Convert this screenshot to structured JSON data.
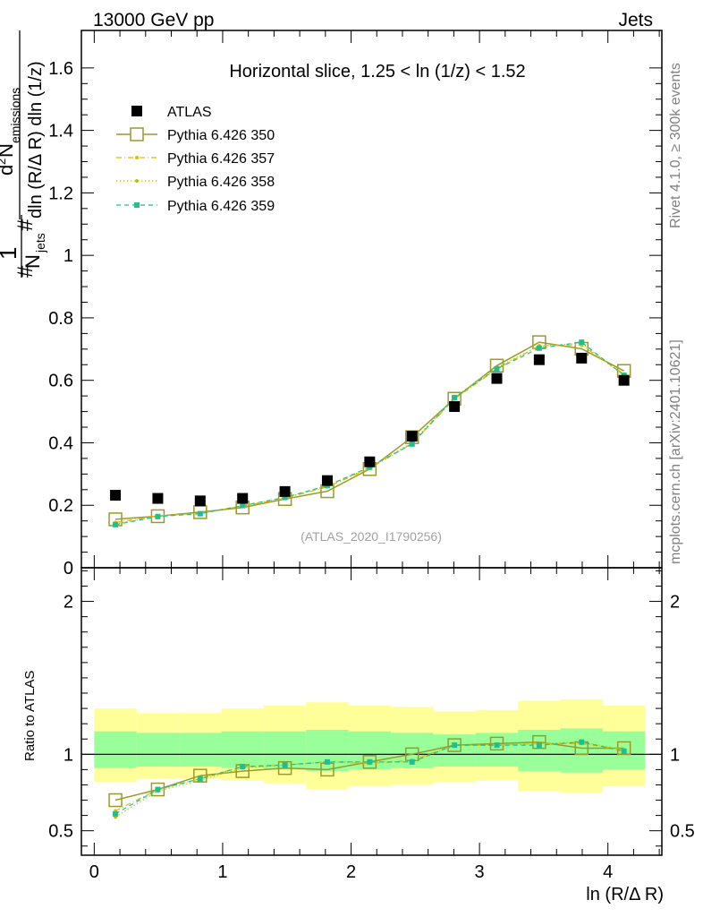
{
  "header": {
    "left": "13000 GeV pp",
    "right": "Jets"
  },
  "side_labels": {
    "rivet": "Rivet 4.1.0, ≥ 300k events",
    "mcplots": "mcplots.cern.ch [arXiv:2401.10621]"
  },
  "watermark": "(ATLAS_2020_I1790256)",
  "colors": {
    "atlas": "#000000",
    "p350": "#9a9a2a",
    "p357": "#e6b800",
    "p358": "#b8c800",
    "p359": "#1fbf8f",
    "band_outer": "#ffff99",
    "band_inner": "#99ff99"
  },
  "chart_data": [
    {
      "type": "scatter",
      "panel": "main",
      "title": "Horizontal slice, 1.25 < ln (1/z) < 1.52",
      "ylabel": "1/N_jets d²N_emissions / dln(R/ΔR) dln(1/z)",
      "ylabel_parts": {
        "one": "1",
        "njets": "N",
        "njets_sub": "jets",
        "num": "d",
        "num_sup": "2",
        "num_n": "N",
        "num_sub": "emissions",
        "den": "dln (R/Δ R) dln (1/z)",
        "hash": "#"
      },
      "xlim": [
        -0.1,
        4.42
      ],
      "ylim": [
        0,
        1.72
      ],
      "yticks": [
        0,
        0.2,
        0.4,
        0.6,
        0.8,
        1,
        1.2,
        1.4,
        1.6
      ],
      "ytick_labels": [
        "0",
        "0.2",
        "0.4",
        "0.6",
        "0.8",
        "1",
        "1.2",
        "1.4",
        "1.6"
      ],
      "x": [
        0.165,
        0.495,
        0.825,
        1.155,
        1.485,
        1.815,
        2.145,
        2.475,
        2.805,
        3.135,
        3.465,
        3.795,
        4.125
      ],
      "series": [
        {
          "name": "ATLAS",
          "style": "data",
          "values": [
            0.232,
            0.222,
            0.214,
            0.222,
            0.244,
            0.279,
            0.339,
            0.421,
            0.516,
            0.606,
            0.666,
            0.671,
            0.6
          ]
        },
        {
          "name": "Pythia 6.426 350",
          "style": "open-square",
          "values": [
            0.155,
            0.165,
            0.178,
            0.193,
            0.22,
            0.245,
            0.316,
            0.418,
            0.541,
            0.647,
            0.722,
            0.701,
            0.63
          ]
        },
        {
          "name": "Pythia 6.426 357",
          "style": "dashdot",
          "values": [
            0.145,
            0.166,
            0.174,
            0.197,
            0.222,
            0.259,
            0.318,
            0.398,
            0.54,
            0.636,
            0.711,
            0.712,
            0.62
          ]
        },
        {
          "name": "Pythia 6.426 358",
          "style": "dotted",
          "values": [
            0.14,
            0.165,
            0.174,
            0.199,
            0.224,
            0.262,
            0.321,
            0.401,
            0.546,
            0.641,
            0.71,
            0.718,
            0.615
          ]
        },
        {
          "name": "Pythia 6.426 359",
          "style": "dashed",
          "values": [
            0.138,
            0.164,
            0.173,
            0.199,
            0.225,
            0.263,
            0.322,
            0.396,
            0.545,
            0.637,
            0.703,
            0.722,
            0.616
          ]
        }
      ]
    },
    {
      "type": "scatter",
      "panel": "ratio",
      "ylabel": "Ratio to ATLAS",
      "xlabel": "ln (R/Δ R)",
      "xlim": [
        -0.1,
        4.42
      ],
      "ylim": [
        0.34,
        2.22
      ],
      "xticks": [
        0,
        1,
        2,
        3,
        4
      ],
      "xtick_labels": [
        "0",
        "1",
        "2",
        "3",
        "4"
      ],
      "yticks": [
        0.5,
        1,
        2
      ],
      "ytick_labels": [
        "0.5",
        "1",
        "2"
      ],
      "band_edges": [
        0.0,
        0.33,
        0.66,
        0.99,
        1.32,
        1.65,
        1.98,
        2.31,
        2.64,
        2.97,
        3.3,
        3.63,
        3.96,
        4.29
      ],
      "band_outer_low": [
        0.82,
        0.84,
        0.84,
        0.83,
        0.81,
        0.77,
        0.79,
        0.8,
        0.82,
        0.83,
        0.76,
        0.75,
        0.79
      ],
      "band_outer_high": [
        1.3,
        1.27,
        1.27,
        1.3,
        1.32,
        1.34,
        1.32,
        1.31,
        1.28,
        1.29,
        1.35,
        1.36,
        1.32
      ],
      "band_inner_low": [
        0.91,
        0.92,
        0.92,
        0.91,
        0.9,
        0.89,
        0.9,
        0.91,
        0.92,
        0.92,
        0.89,
        0.88,
        0.9
      ],
      "band_inner_high": [
        1.15,
        1.14,
        1.14,
        1.15,
        1.15,
        1.16,
        1.15,
        1.14,
        1.13,
        1.14,
        1.16,
        1.17,
        1.15
      ],
      "x": [
        0.165,
        0.495,
        0.825,
        1.155,
        1.485,
        1.815,
        2.145,
        2.475,
        2.805,
        3.135,
        3.465,
        3.795,
        4.125
      ],
      "series": [
        {
          "name": "Pythia 6.426 350",
          "style": "open-square",
          "values": [
            0.7,
            0.77,
            0.86,
            0.89,
            0.91,
            0.9,
            0.95,
            1.0,
            1.06,
            1.07,
            1.08,
            1.04,
            1.04
          ]
        },
        {
          "name": "Pythia 6.426 357",
          "style": "dashdot",
          "values": [
            0.63,
            0.77,
            0.84,
            0.92,
            0.93,
            0.95,
            0.94,
            0.96,
            1.06,
            1.06,
            1.07,
            1.07,
            1.03
          ]
        },
        {
          "name": "Pythia 6.426 358",
          "style": "dotted",
          "values": [
            0.59,
            0.76,
            0.83,
            0.91,
            0.93,
            0.95,
            0.95,
            0.95,
            1.06,
            1.06,
            1.07,
            1.08,
            1.03
          ]
        },
        {
          "name": "Pythia 6.426 359",
          "style": "dashed",
          "values": [
            0.61,
            0.77,
            0.84,
            0.92,
            0.93,
            0.95,
            0.95,
            0.95,
            1.06,
            1.06,
            1.06,
            1.08,
            1.02
          ]
        }
      ]
    }
  ]
}
